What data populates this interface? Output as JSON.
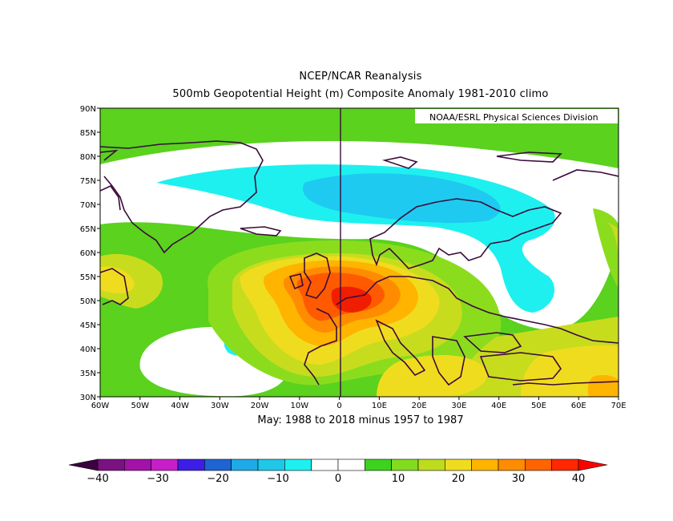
{
  "title_line1": "NCEP/NCAR Reanalysis",
  "title_line2": "500mb Geopotential Height (m) Composite Anomaly 1981-2010 climo",
  "credit": "NOAA/ESRL Physical Sciences Division",
  "subtitle": "May: 1988 to 2018 minus 1957 to 1987",
  "map": {
    "lon_range": [
      -60,
      70
    ],
    "lat_range": [
      30,
      90
    ],
    "lat_labels": [
      "90N",
      "85N",
      "80N",
      "75N",
      "70N",
      "65N",
      "60N",
      "55N",
      "50N",
      "45N",
      "40N",
      "35N",
      "30N"
    ],
    "lon_labels": [
      "60W",
      "50W",
      "40W",
      "30W",
      "20W",
      "10W",
      "0",
      "10E",
      "20E",
      "30E",
      "40E",
      "50E",
      "60E",
      "70E"
    ]
  },
  "colorbar": {
    "labels": [
      "-40",
      "-30",
      "-20",
      "-10",
      "0",
      "10",
      "20",
      "30",
      "40"
    ],
    "colors": [
      "#3a0040",
      "#7a1280",
      "#a212a8",
      "#c81ec8",
      "#3c1ee6",
      "#1e64d2",
      "#1eaae6",
      "#1ec8e6",
      "#1ef0f0",
      "#ffffff",
      "#ffffff",
      "#3cd21e",
      "#82dc1e",
      "#bedc1e",
      "#f0dc1e",
      "#ffb400",
      "#ff8c00",
      "#ff6400",
      "#ff2800",
      "#ff0000"
    ]
  },
  "legend_colors": {
    "neg10": "#1ef0f0",
    "neg15": "#1ecaf0",
    "zero": "#ffffff",
    "pos5": "#5ad21e",
    "pos10": "#8cdc1e",
    "pos15": "#c8dc1e",
    "pos20": "#f0dc1e",
    "pos25": "#ffb400",
    "pos30": "#ff8c00",
    "pos35": "#ff5a00",
    "pos40": "#f01e00"
  }
}
